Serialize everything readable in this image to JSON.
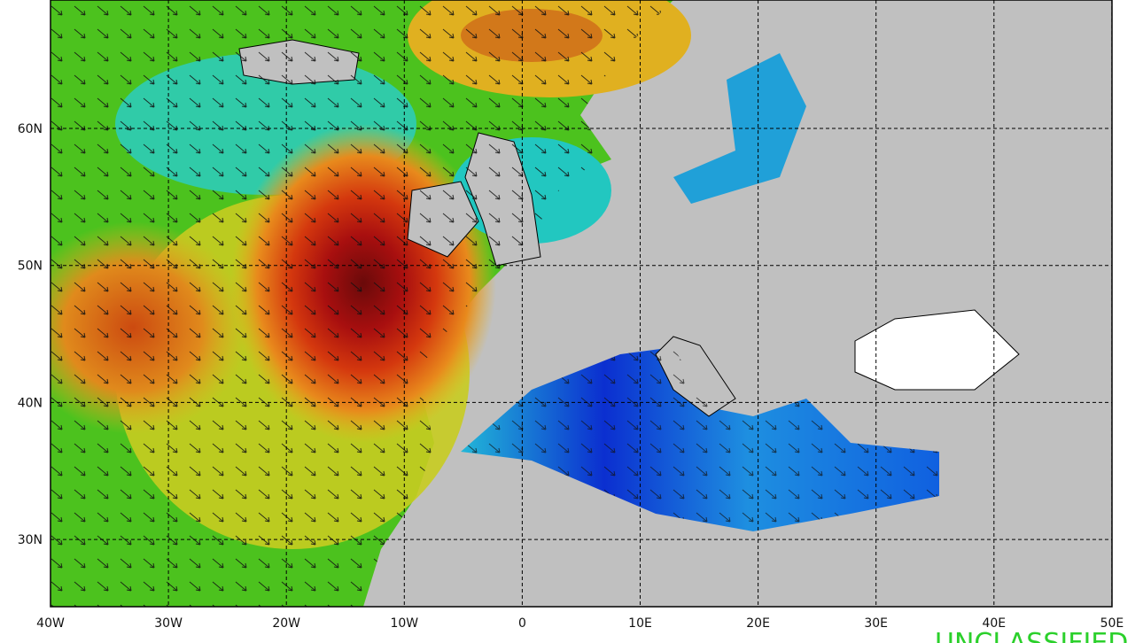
{
  "map": {
    "lat_labels": [
      "60N",
      "50N",
      "40N",
      "30N"
    ],
    "lon_labels": [
      "40W",
      "30W",
      "20W",
      "10W",
      "0",
      "10E",
      "20E",
      "30E",
      "40E",
      "50E"
    ]
  },
  "footer": {
    "classification": "UNCLASSIFIED"
  }
}
